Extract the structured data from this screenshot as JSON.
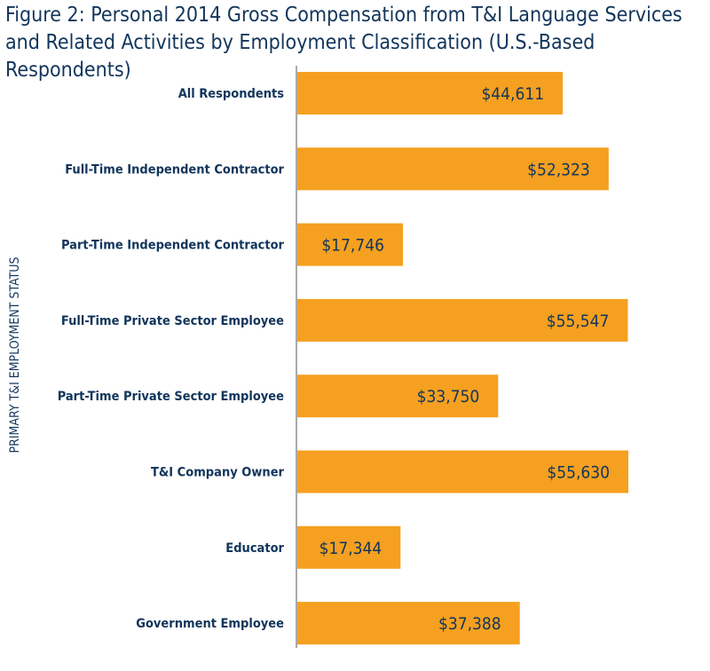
{
  "chart_data": {
    "type": "bar",
    "orientation": "horizontal",
    "title": "Figure 2: Personal 2014 Gross Compensation from T&I Language Services and Related Activities by Employment Classification (U.S.-Based Respondents)",
    "ylabel": "PRIMARY T&I EMPLOYMENT STATUS",
    "xlabel": "",
    "categories": [
      "All Respondents",
      "Full-Time Independent Contractor",
      "Part-Time Independent Contractor",
      "Full-Time Private Sector Employee",
      "Part-Time Private Sector Employee",
      "T&I Company Owner",
      "Educator",
      "Government Employee"
    ],
    "values": [
      44611,
      52323,
      17746,
      55547,
      33750,
      55630,
      17344,
      37388
    ],
    "value_labels": [
      "$44,611",
      "$52,323",
      "$17,746",
      "$55,547",
      "$33,750",
      "$55,630",
      "$17,344",
      "$37,388"
    ],
    "xlim": [
      0,
      69500
    ],
    "grid": false,
    "legend": "none",
    "colors": {
      "bar": "#f5a020",
      "text": "#12355b",
      "axis": "#555555"
    }
  }
}
